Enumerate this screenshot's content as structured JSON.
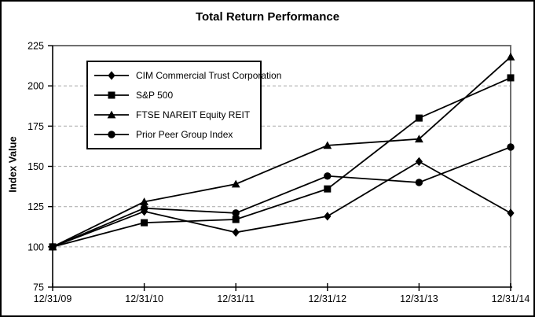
{
  "figure": {
    "title": "Total Return Performance",
    "y_axis_title": "Index Value"
  },
  "chart_data": {
    "type": "line",
    "title": "Total Return Performance",
    "xlabel": "",
    "ylabel": "Index Value",
    "categories": [
      "12/31/09",
      "12/31/10",
      "12/31/11",
      "12/31/12",
      "12/31/13",
      "12/31/14"
    ],
    "series": [
      {
        "name": "CIM Commercial Trust Corporation",
        "marker": "diamond",
        "values": [
          100,
          122,
          109,
          119,
          153,
          121
        ]
      },
      {
        "name": "S&P 500",
        "marker": "square",
        "values": [
          100,
          115,
          117,
          136,
          180,
          205
        ]
      },
      {
        "name": "FTSE NAREIT Equity REIT",
        "marker": "triangle",
        "values": [
          100,
          128,
          139,
          163,
          167,
          218
        ]
      },
      {
        "name": "Prior Peer Group Index",
        "marker": "circle",
        "values": [
          100,
          124,
          121,
          144,
          140,
          162
        ]
      }
    ],
    "ylim": [
      75,
      225
    ],
    "ytick_interval": 25,
    "yticks": [
      75,
      100,
      125,
      150,
      175,
      200,
      225
    ],
    "grid": "horizontal-dashed",
    "legend_position": "upper-left-inside",
    "colors": {
      "series": "#000000",
      "grid": "#b3b3b3",
      "plot_border": "#6f6f6f",
      "axis": "#000000",
      "background": "#ffffff"
    }
  }
}
